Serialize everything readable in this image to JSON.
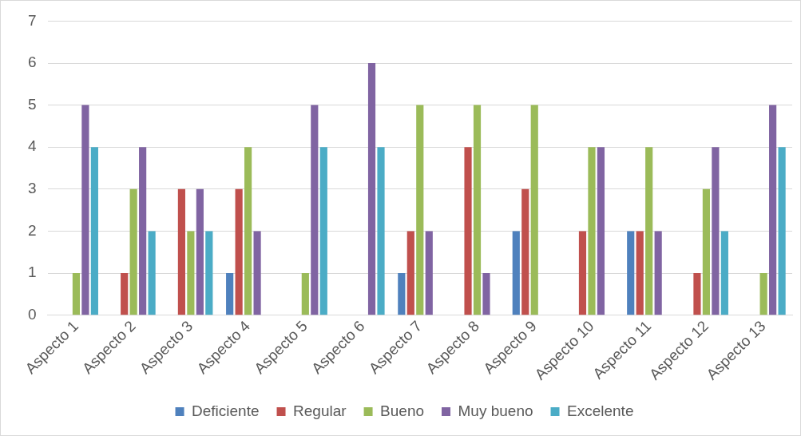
{
  "chart_data": {
    "type": "bar",
    "categories": [
      "Aspecto 1",
      "Aspecto 2",
      "Aspecto 3",
      "Aspecto 4",
      "Aspecto 5",
      "Aspecto 6",
      "Aspecto 7",
      "Aspecto 8",
      "Aspecto 9",
      "Aspecto 10",
      "Aspecto 11",
      "Aspecto 12",
      "Aspecto 13"
    ],
    "series": [
      {
        "name": "Deficiente",
        "color": "#4f81bd",
        "values": [
          0,
          0,
          0,
          1,
          0,
          0,
          1,
          0,
          2,
          0,
          2,
          0,
          0
        ]
      },
      {
        "name": "Regular",
        "color": "#c0504d",
        "values": [
          0,
          1,
          3,
          3,
          0,
          0,
          2,
          4,
          3,
          2,
          2,
          1,
          0
        ]
      },
      {
        "name": "Bueno",
        "color": "#9bbb59",
        "values": [
          1,
          3,
          2,
          4,
          1,
          0,
          5,
          5,
          5,
          4,
          4,
          3,
          1
        ]
      },
      {
        "name": "Muy bueno",
        "color": "#8064a2",
        "values": [
          5,
          4,
          3,
          2,
          5,
          6,
          2,
          1,
          0,
          4,
          2,
          4,
          5
        ]
      },
      {
        "name": "Excelente",
        "color": "#4bacc6",
        "values": [
          4,
          2,
          2,
          0,
          4,
          4,
          0,
          0,
          0,
          0,
          0,
          2,
          4
        ]
      }
    ],
    "ylim": [
      0,
      7
    ],
    "yticks": [
      0,
      1,
      2,
      3,
      4,
      5,
      6,
      7
    ],
    "grid": "y",
    "legend": "bottom"
  }
}
